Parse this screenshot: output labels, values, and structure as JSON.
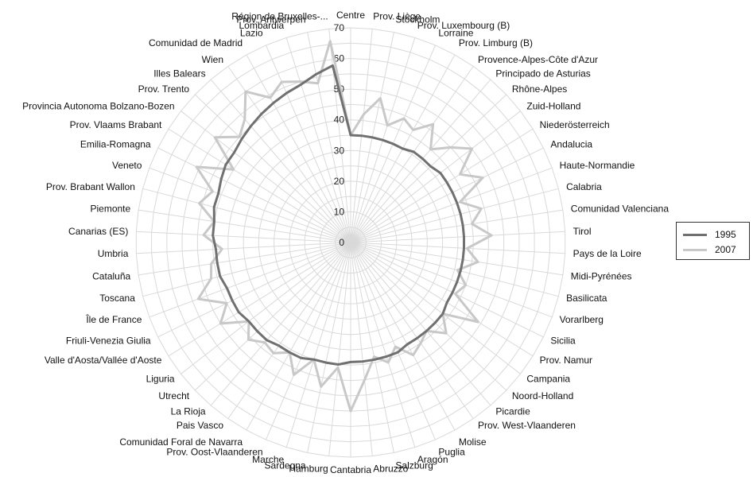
{
  "chart_data": {
    "type": "radar",
    "title": "",
    "categories": [
      "Centre",
      "Prov. Liège",
      "Stockholm",
      "Prov. Luxembourg (B)",
      "Lorraine",
      "Prov. Limburg (B)",
      "Provence-Alpes-Côte d'Azur",
      "Principado de Asturias",
      "Rhône-Alpes",
      "Zuid-Holland",
      "Niederösterreich",
      "Andalucia",
      "Haute-Normandie",
      "Calabria",
      "Comunidad Valenciana",
      "Tirol",
      "Pays de la Loire",
      "Midi-Pyrénées",
      "Basilicata",
      "Vorarlberg",
      "Sicilia",
      "Prov. Namur",
      "Campania",
      "Noord-Holland",
      "Picardie",
      "Prov. West-Vlaanderen",
      "Molise",
      "Puglia",
      "Aragón",
      "Salzburg",
      "Abruzzo",
      "Cantabria",
      "Hamburg",
      "Sardegna",
      "Marche",
      "Prov. Oost-Vlaanderen",
      "Comunidad Foral de Navarra",
      "Pais Vasco",
      "La Rioja",
      "Utrecht",
      "Liguria",
      "Valle d'Aosta/Vallée d'Aoste",
      "Friuli-Venezia Giulia",
      "Île de France",
      "Toscana",
      "Cataluña",
      "Umbria",
      "Canarias (ES)",
      "Piemonte",
      "Prov. Brabant Wallon",
      "Veneto",
      "Emilia-Romagna",
      "Prov. Vlaams Brabant",
      "Provincia Autonoma Bolzano-Bozen",
      "Prov. Trento",
      "Illes Balears",
      "Wien",
      "Comunidad de Madrid",
      "Lazio",
      "Lombardia",
      "Prov. Antwerpen",
      "Région de Bruxelles-..."
    ],
    "series": [
      {
        "name": "1995",
        "color": "#707070",
        "values": [
          35,
          35,
          35,
          35,
          35,
          35,
          36,
          36,
          36,
          37,
          37,
          37,
          37,
          37,
          37,
          37,
          37,
          37,
          37,
          37,
          37,
          37,
          38,
          38,
          38,
          38,
          38,
          39,
          39,
          39,
          39,
          39,
          40,
          40,
          40,
          41,
          41,
          41,
          42,
          42,
          42,
          43,
          43,
          43,
          44,
          44,
          44,
          45,
          45,
          46,
          46,
          47,
          48,
          48,
          49,
          50,
          51,
          52,
          53,
          54,
          56,
          58
        ]
      },
      {
        "name": "2007",
        "color": "#c8c8c8",
        "values": [
          35,
          42,
          48,
          40,
          44,
          42,
          47,
          40,
          45,
          50,
          42,
          48,
          38,
          44,
          40,
          46,
          38,
          42,
          36,
          40,
          38,
          49,
          38,
          43,
          38,
          40,
          42,
          37,
          41,
          38,
          45,
          55,
          41,
          48,
          40,
          47,
          41,
          44,
          43,
          46,
          42,
          50,
          45,
          53,
          47,
          46,
          42,
          48,
          45,
          51,
          48,
          56,
          45,
          56,
          50,
          53,
          60,
          54,
          57,
          55,
          53,
          66
        ]
      }
    ],
    "ylim": [
      0,
      70
    ],
    "rticks": [
      "0",
      "10",
      "20",
      "30",
      "40",
      "50",
      "60",
      "70"
    ],
    "grid": true,
    "legend_position": "right"
  }
}
